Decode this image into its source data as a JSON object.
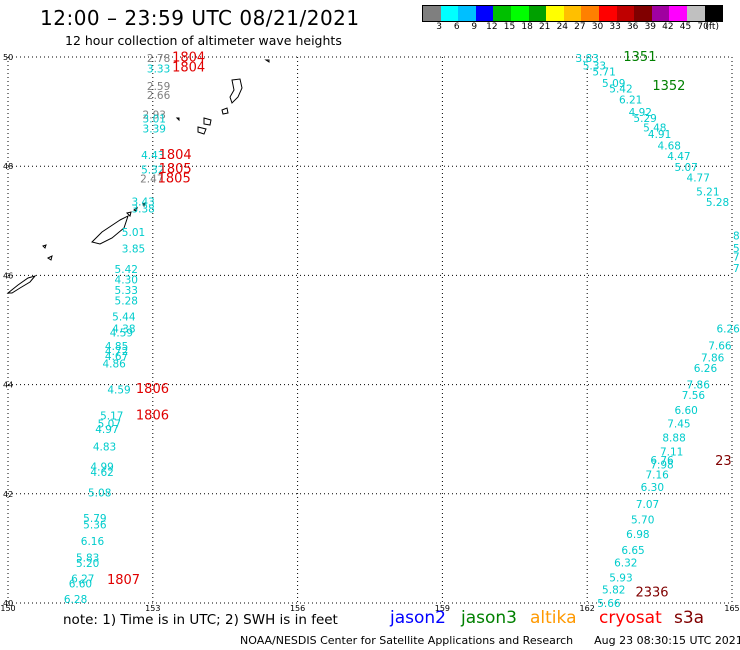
{
  "title": "12:00 – 23:59 UTC 08/21/2021",
  "subtitle": "12 hour collection of altimeter wave heights",
  "colorbar": {
    "colors": [
      "#7f7f7f",
      "#00ffff",
      "#00bfff",
      "#0000ff",
      "#00bf00",
      "#00ff00",
      "#00a000",
      "#ffff00",
      "#ffbf00",
      "#ff8000",
      "#ff0000",
      "#bf0000",
      "#800000",
      "#a000a0",
      "#ff00ff",
      "#c0c0c0",
      "#000000"
    ],
    "labels": [
      "3",
      "6",
      "9",
      "12",
      "15",
      "18",
      "21",
      "24",
      "27",
      "30",
      "33",
      "36",
      "39",
      "42",
      "45",
      "70",
      "(ft)"
    ]
  },
  "map": {
    "lon_ticks": [
      "150",
      "153",
      "156",
      "159",
      "162",
      "165"
    ],
    "lat_ticks": [
      "50",
      "48",
      "46",
      "44",
      "42",
      "40"
    ],
    "lon_range": [
      150,
      165
    ],
    "lat_range": [
      40,
      50
    ]
  },
  "observations": [
    {
      "lon": 153.12,
      "lat": 49.91,
      "v": "2.78",
      "c": "#7f7f7f"
    },
    {
      "lon": 153.12,
      "lat": 49.72,
      "v": "3.33",
      "c": "#00cccc"
    },
    {
      "lon": 153.12,
      "lat": 49.4,
      "v": "2.59",
      "c": "#7f7f7f"
    },
    {
      "lon": 153.12,
      "lat": 49.23,
      "v": "2.66",
      "c": "#7f7f7f"
    },
    {
      "lon": 153.03,
      "lat": 48.87,
      "v": "2.93",
      "c": "#7f7f7f"
    },
    {
      "lon": 153.03,
      "lat": 48.8,
      "v": "3.01",
      "c": "#00cccc"
    },
    {
      "lon": 153.03,
      "lat": 48.62,
      "v": "3.39",
      "c": "#00cccc"
    },
    {
      "lon": 153.0,
      "lat": 48.13,
      "v": "4.43",
      "c": "#00cccc"
    },
    {
      "lon": 153.0,
      "lat": 47.87,
      "v": "5.32",
      "c": "#00cccc"
    },
    {
      "lon": 152.98,
      "lat": 47.7,
      "v": "2.47",
      "c": "#7f7f7f"
    },
    {
      "lon": 152.8,
      "lat": 47.28,
      "v": "3.43",
      "c": "#00cccc"
    },
    {
      "lon": 152.8,
      "lat": 47.15,
      "v": "3.38",
      "c": "#00cccc"
    },
    {
      "lon": 152.6,
      "lat": 46.72,
      "v": "5.01",
      "c": "#00cccc"
    },
    {
      "lon": 152.6,
      "lat": 46.42,
      "v": "3.85",
      "c": "#00cccc"
    },
    {
      "lon": 152.45,
      "lat": 46.04,
      "v": "5.42",
      "c": "#00cccc"
    },
    {
      "lon": 152.45,
      "lat": 45.85,
      "v": "4.30",
      "c": "#00cccc"
    },
    {
      "lon": 152.45,
      "lat": 45.66,
      "v": "5.33",
      "c": "#00cccc"
    },
    {
      "lon": 152.45,
      "lat": 45.47,
      "v": "5.28",
      "c": "#00cccc"
    },
    {
      "lon": 152.4,
      "lat": 45.17,
      "v": "5.44",
      "c": "#00cccc"
    },
    {
      "lon": 152.4,
      "lat": 44.95,
      "v": "4.38",
      "c": "#00cccc"
    },
    {
      "lon": 152.35,
      "lat": 44.88,
      "v": "4.59",
      "c": "#00cccc"
    },
    {
      "lon": 152.25,
      "lat": 44.63,
      "v": "4.85",
      "c": "#00cccc"
    },
    {
      "lon": 152.25,
      "lat": 44.54,
      "v": "4.72",
      "c": "#00cccc"
    },
    {
      "lon": 152.25,
      "lat": 44.45,
      "v": "4.67",
      "c": "#00cccc"
    },
    {
      "lon": 152.2,
      "lat": 44.31,
      "v": "4.86",
      "c": "#00cccc"
    },
    {
      "lon": 152.3,
      "lat": 43.84,
      "v": "4.59",
      "c": "#00cccc"
    },
    {
      "lon": 152.15,
      "lat": 43.36,
      "v": "5.17",
      "c": "#00cccc"
    },
    {
      "lon": 152.1,
      "lat": 43.21,
      "v": "5.07",
      "c": "#00cccc"
    },
    {
      "lon": 152.05,
      "lat": 43.11,
      "v": "4.97",
      "c": "#00cccc"
    },
    {
      "lon": 152.0,
      "lat": 42.79,
      "v": "4.83",
      "c": "#00cccc"
    },
    {
      "lon": 151.95,
      "lat": 42.43,
      "v": "4.99",
      "c": "#00cccc"
    },
    {
      "lon": 151.95,
      "lat": 42.33,
      "v": "4.62",
      "c": "#00cccc"
    },
    {
      "lon": 151.9,
      "lat": 41.95,
      "v": "5.08",
      "c": "#00cccc"
    },
    {
      "lon": 151.8,
      "lat": 41.48,
      "v": "5.79",
      "c": "#00cccc"
    },
    {
      "lon": 151.8,
      "lat": 41.36,
      "v": "5.36",
      "c": "#00cccc"
    },
    {
      "lon": 151.75,
      "lat": 41.06,
      "v": "6.16",
      "c": "#00cccc"
    },
    {
      "lon": 151.65,
      "lat": 40.76,
      "v": "5.83",
      "c": "#00cccc"
    },
    {
      "lon": 151.65,
      "lat": 40.66,
      "v": "5.20",
      "c": "#00cccc"
    },
    {
      "lon": 151.55,
      "lat": 40.38,
      "v": "6.27",
      "c": "#00cccc"
    },
    {
      "lon": 151.5,
      "lat": 40.28,
      "v": "6.60",
      "c": "#00cccc"
    },
    {
      "lon": 151.4,
      "lat": 40.0,
      "v": "6.28",
      "c": "#00cccc"
    },
    {
      "lon": 162.0,
      "lat": 49.91,
      "v": "3.83",
      "c": "#00cccc"
    },
    {
      "lon": 162.15,
      "lat": 49.77,
      "v": "5.33",
      "c": "#00cccc"
    },
    {
      "lon": 162.35,
      "lat": 49.66,
      "v": "5.71",
      "c": "#00cccc"
    },
    {
      "lon": 162.55,
      "lat": 49.45,
      "v": "5.09",
      "c": "#00cccc"
    },
    {
      "lon": 162.7,
      "lat": 49.35,
      "v": "5.42",
      "c": "#00cccc"
    },
    {
      "lon": 162.9,
      "lat": 49.15,
      "v": "6.21",
      "c": "#00cccc"
    },
    {
      "lon": 163.1,
      "lat": 48.92,
      "v": "4.92",
      "c": "#00cccc"
    },
    {
      "lon": 163.2,
      "lat": 48.81,
      "v": "5.29",
      "c": "#00cccc"
    },
    {
      "lon": 163.4,
      "lat": 48.64,
      "v": "5.48",
      "c": "#00cccc"
    },
    {
      "lon": 163.5,
      "lat": 48.52,
      "v": "4.91",
      "c": "#00cccc"
    },
    {
      "lon": 163.7,
      "lat": 48.31,
      "v": "4.68",
      "c": "#00cccc"
    },
    {
      "lon": 163.9,
      "lat": 48.11,
      "v": "4.47",
      "c": "#00cccc"
    },
    {
      "lon": 164.05,
      "lat": 47.91,
      "v": "5.07",
      "c": "#00cccc"
    },
    {
      "lon": 164.3,
      "lat": 47.72,
      "v": "4.77",
      "c": "#00cccc"
    },
    {
      "lon": 164.5,
      "lat": 47.46,
      "v": "5.21",
      "c": "#00cccc"
    },
    {
      "lon": 164.7,
      "lat": 47.27,
      "v": "5.28",
      "c": "#00cccc"
    },
    {
      "lon": 164.92,
      "lat": 44.95,
      "v": "6.26",
      "c": "#00cccc"
    },
    {
      "lon": 164.75,
      "lat": 44.64,
      "v": "7.66",
      "c": "#00cccc"
    },
    {
      "lon": 164.6,
      "lat": 44.42,
      "v": "7.86",
      "c": "#00cccc"
    },
    {
      "lon": 164.45,
      "lat": 44.23,
      "v": "6.26",
      "c": "#00cccc"
    },
    {
      "lon": 164.3,
      "lat": 43.93,
      "v": "7.86",
      "c": "#00cccc"
    },
    {
      "lon": 164.2,
      "lat": 43.74,
      "v": "7.56",
      "c": "#00cccc"
    },
    {
      "lon": 164.05,
      "lat": 43.46,
      "v": "6.60",
      "c": "#00cccc"
    },
    {
      "lon": 163.9,
      "lat": 43.21,
      "v": "7.45",
      "c": "#00cccc"
    },
    {
      "lon": 163.8,
      "lat": 42.96,
      "v": "8.88",
      "c": "#00cccc"
    },
    {
      "lon": 163.75,
      "lat": 42.7,
      "v": "7.11",
      "c": "#00cccc"
    },
    {
      "lon": 163.55,
      "lat": 42.55,
      "v": "6.76",
      "c": "#00cccc"
    },
    {
      "lon": 163.55,
      "lat": 42.46,
      "v": "7.98",
      "c": "#00cccc"
    },
    {
      "lon": 163.45,
      "lat": 42.28,
      "v": "7.16",
      "c": "#00cccc"
    },
    {
      "lon": 163.35,
      "lat": 42.05,
      "v": "6.30",
      "c": "#00cccc"
    },
    {
      "lon": 163.25,
      "lat": 41.74,
      "v": "7.07",
      "c": "#00cccc"
    },
    {
      "lon": 163.15,
      "lat": 41.46,
      "v": "5.70",
      "c": "#00cccc"
    },
    {
      "lon": 163.05,
      "lat": 41.19,
      "v": "6.98",
      "c": "#00cccc"
    },
    {
      "lon": 162.95,
      "lat": 40.9,
      "v": "6.65",
      "c": "#00cccc"
    },
    {
      "lon": 162.8,
      "lat": 40.67,
      "v": "6.32",
      "c": "#00cccc"
    },
    {
      "lon": 162.7,
      "lat": 40.39,
      "v": "5.93",
      "c": "#00cccc"
    },
    {
      "lon": 162.55,
      "lat": 40.17,
      "v": "5.82",
      "c": "#00cccc"
    },
    {
      "lon": 162.45,
      "lat": 39.93,
      "v": "5.66",
      "c": "#00cccc"
    }
  ],
  "time_labels": [
    {
      "lon": 153.4,
      "lat": 49.92,
      "t": "1804",
      "c": "#e00000"
    },
    {
      "lon": 153.4,
      "lat": 49.73,
      "t": "1804",
      "c": "#e00000"
    },
    {
      "lon": 153.12,
      "lat": 48.13,
      "t": "1804",
      "c": "#e00000"
    },
    {
      "lon": 153.12,
      "lat": 47.88,
      "t": "1805",
      "c": "#e00000"
    },
    {
      "lon": 153.1,
      "lat": 47.7,
      "t": "1805",
      "c": "#e00000"
    },
    {
      "lon": 152.65,
      "lat": 43.85,
      "t": "1806",
      "c": "#e00000"
    },
    {
      "lon": 152.65,
      "lat": 43.36,
      "t": "1806",
      "c": "#e00000"
    },
    {
      "lon": 152.05,
      "lat": 40.35,
      "t": "1807",
      "c": "#e00000"
    },
    {
      "lon": 162.75,
      "lat": 49.93,
      "t": "1351",
      "c": "#008000"
    },
    {
      "lon": 163.35,
      "lat": 49.4,
      "t": "1352",
      "c": "#008000"
    },
    {
      "lon": 164.65,
      "lat": 42.53,
      "t": "23",
      "c": "#800000"
    },
    {
      "lon": 163.0,
      "lat": 40.12,
      "t": "2336",
      "c": "#800000"
    }
  ],
  "right_edge_values": [
    {
      "lat": 46.66,
      "v": "8"
    },
    {
      "lat": 46.43,
      "v": "5."
    },
    {
      "lat": 46.27,
      "v": "7."
    },
    {
      "lat": 46.06,
      "v": "7.0"
    }
  ],
  "note": "note: 1) Time is in UTC; 2) SWH is in feet",
  "satellites": [
    {
      "name": "jason2",
      "color": "#0000ff"
    },
    {
      "name": "jason3",
      "color": "#008000"
    },
    {
      "name": "altika",
      "color": "#ff9900"
    },
    {
      "name": "cryosat",
      "color": "#ff0000"
    },
    {
      "name": "s3a",
      "color": "#800000"
    }
  ],
  "credit": "NOAA/NESDIS Center for Satellite Applications and Research",
  "timestamp": "Aug 23 08:30:15 UTC 2021"
}
